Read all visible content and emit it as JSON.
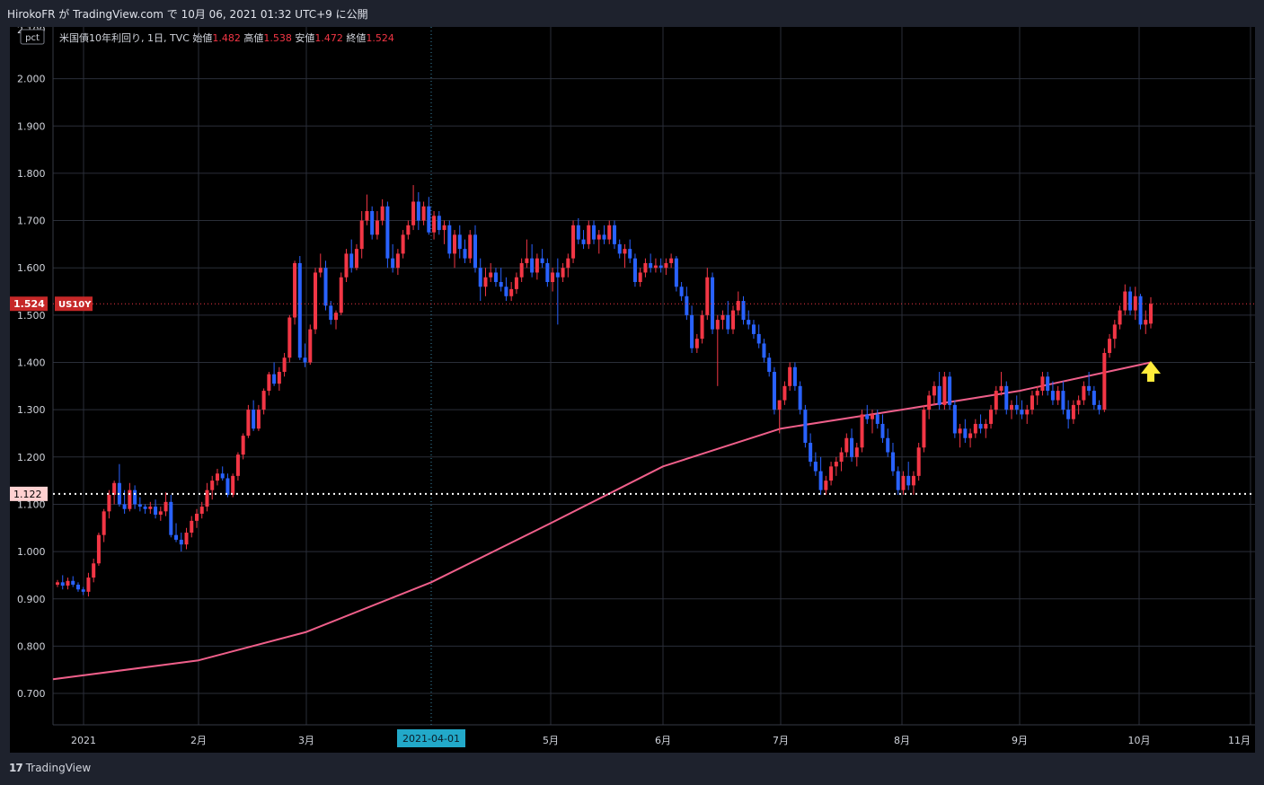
{
  "header": {
    "caption": "HirokoFR が TradingView.com で 10月 06, 2021 01:32 UTC+9 に公開"
  },
  "legend": {
    "unit_badge": "pct",
    "symbol": "米国債10年利回り, 1日, TVC",
    "open_label": "始値",
    "open_value": "1.482",
    "high_label": "高値",
    "high_value": "1.538",
    "low_label": "安値",
    "low_value": "1.472",
    "close_label": "終値",
    "close_value": "1.524"
  },
  "footer": {
    "brand": "TradingView",
    "brand_icon": "tradingview-logo-icon"
  },
  "colors": {
    "background": "#000000",
    "up": "#f23645",
    "down": "#2962ff",
    "ma_line": "#ef5f8a",
    "grid": "#2a2e39",
    "axis_text": "#d1d4dc",
    "arrow": "#ffeb3b",
    "crosshair_label_bg": "#22a9c9"
  },
  "chart_data": {
    "type": "candlestick",
    "ylim": [
      0.65,
      2.1
    ],
    "y_ticks": [
      "0.700",
      "0.800",
      "0.900",
      "1.000",
      "1.100",
      "1.200",
      "1.300",
      "1.400",
      "1.500",
      "1.600",
      "1.700",
      "1.800",
      "1.900",
      "2.000"
    ],
    "top_tick_partial": "2.100",
    "x_ticks": [
      "2021",
      "2月",
      "3月",
      "5月",
      "6月",
      "7月",
      "8月",
      "9月",
      "10月",
      "11月"
    ],
    "crosshair_x_label": "2021-04-01",
    "price_label": {
      "value": "1.524",
      "symbol": "US10Y"
    },
    "horizontal_line": {
      "value": "1.122"
    },
    "ohlc": [
      [
        0.93,
        0.94,
        0.925,
        0.935
      ],
      [
        0.935,
        0.95,
        0.92,
        0.928
      ],
      [
        0.928,
        0.945,
        0.92,
        0.938
      ],
      [
        0.938,
        0.948,
        0.925,
        0.93
      ],
      [
        0.93,
        0.935,
        0.915,
        0.92
      ],
      [
        0.92,
        0.925,
        0.908,
        0.915
      ],
      [
        0.915,
        0.955,
        0.905,
        0.945
      ],
      [
        0.945,
        0.985,
        0.935,
        0.975
      ],
      [
        0.975,
        1.04,
        0.97,
        1.035
      ],
      [
        1.035,
        1.09,
        1.02,
        1.085
      ],
      [
        1.085,
        1.13,
        1.07,
        1.12
      ],
      [
        1.12,
        1.15,
        1.1,
        1.145
      ],
      [
        1.145,
        1.185,
        1.095,
        1.1
      ],
      [
        1.1,
        1.13,
        1.08,
        1.09
      ],
      [
        1.09,
        1.145,
        1.085,
        1.13
      ],
      [
        1.13,
        1.14,
        1.09,
        1.1
      ],
      [
        1.1,
        1.115,
        1.085,
        1.095
      ],
      [
        1.095,
        1.1,
        1.08,
        1.09
      ],
      [
        1.09,
        1.105,
        1.08,
        1.095
      ],
      [
        1.095,
        1.11,
        1.07,
        1.078
      ],
      [
        1.078,
        1.095,
        1.065,
        1.085
      ],
      [
        1.085,
        1.125,
        1.075,
        1.105
      ],
      [
        1.105,
        1.12,
        1.03,
        1.035
      ],
      [
        1.035,
        1.06,
        1.02,
        1.025
      ],
      [
        1.025,
        1.04,
        1.0,
        1.015
      ],
      [
        1.015,
        1.05,
        1.005,
        1.04
      ],
      [
        1.04,
        1.075,
        1.03,
        1.065
      ],
      [
        1.065,
        1.09,
        1.05,
        1.08
      ],
      [
        1.08,
        1.105,
        1.07,
        1.095
      ],
      [
        1.095,
        1.145,
        1.085,
        1.13
      ],
      [
        1.13,
        1.16,
        1.11,
        1.15
      ],
      [
        1.15,
        1.175,
        1.14,
        1.165
      ],
      [
        1.165,
        1.18,
        1.15,
        1.155
      ],
      [
        1.155,
        1.165,
        1.115,
        1.12
      ],
      [
        1.12,
        1.165,
        1.115,
        1.16
      ],
      [
        1.16,
        1.21,
        1.15,
        1.205
      ],
      [
        1.205,
        1.25,
        1.195,
        1.245
      ],
      [
        1.245,
        1.31,
        1.24,
        1.3
      ],
      [
        1.3,
        1.32,
        1.255,
        1.26
      ],
      [
        1.26,
        1.31,
        1.255,
        1.3
      ],
      [
        1.3,
        1.345,
        1.29,
        1.34
      ],
      [
        1.34,
        1.38,
        1.33,
        1.375
      ],
      [
        1.375,
        1.4,
        1.35,
        1.355
      ],
      [
        1.355,
        1.39,
        1.34,
        1.38
      ],
      [
        1.38,
        1.42,
        1.37,
        1.41
      ],
      [
        1.41,
        1.5,
        1.4,
        1.495
      ],
      [
        1.495,
        1.615,
        1.48,
        1.61
      ],
      [
        1.61,
        1.625,
        1.405,
        1.41
      ],
      [
        1.41,
        1.44,
        1.39,
        1.4
      ],
      [
        1.4,
        1.48,
        1.395,
        1.47
      ],
      [
        1.47,
        1.6,
        1.46,
        1.59
      ],
      [
        1.59,
        1.63,
        1.58,
        1.6
      ],
      [
        1.6,
        1.615,
        1.51,
        1.52
      ],
      [
        1.52,
        1.53,
        1.48,
        1.49
      ],
      [
        1.49,
        1.51,
        1.47,
        1.505
      ],
      [
        1.505,
        1.59,
        1.5,
        1.58
      ],
      [
        1.58,
        1.64,
        1.57,
        1.63
      ],
      [
        1.63,
        1.66,
        1.59,
        1.6
      ],
      [
        1.6,
        1.65,
        1.595,
        1.64
      ],
      [
        1.64,
        1.72,
        1.62,
        1.7
      ],
      [
        1.7,
        1.755,
        1.69,
        1.72
      ],
      [
        1.72,
        1.73,
        1.66,
        1.67
      ],
      [
        1.67,
        1.72,
        1.66,
        1.7
      ],
      [
        1.7,
        1.745,
        1.69,
        1.73
      ],
      [
        1.73,
        1.74,
        1.6,
        1.62
      ],
      [
        1.62,
        1.65,
        1.59,
        1.6
      ],
      [
        1.6,
        1.64,
        1.585,
        1.63
      ],
      [
        1.63,
        1.68,
        1.62,
        1.67
      ],
      [
        1.67,
        1.7,
        1.66,
        1.69
      ],
      [
        1.69,
        1.775,
        1.68,
        1.74
      ],
      [
        1.74,
        1.76,
        1.68,
        1.7
      ],
      [
        1.7,
        1.74,
        1.69,
        1.73
      ],
      [
        1.73,
        1.75,
        1.67,
        1.675
      ],
      [
        1.675,
        1.72,
        1.66,
        1.71
      ],
      [
        1.71,
        1.72,
        1.67,
        1.68
      ],
      [
        1.68,
        1.7,
        1.65,
        1.69
      ],
      [
        1.69,
        1.7,
        1.62,
        1.63
      ],
      [
        1.63,
        1.68,
        1.6,
        1.67
      ],
      [
        1.67,
        1.69,
        1.62,
        1.64
      ],
      [
        1.64,
        1.66,
        1.61,
        1.62
      ],
      [
        1.62,
        1.68,
        1.61,
        1.67
      ],
      [
        1.67,
        1.69,
        1.59,
        1.6
      ],
      [
        1.6,
        1.62,
        1.53,
        1.56
      ],
      [
        1.56,
        1.6,
        1.54,
        1.58
      ],
      [
        1.58,
        1.61,
        1.57,
        1.59
      ],
      [
        1.59,
        1.6,
        1.56,
        1.57
      ],
      [
        1.57,
        1.6,
        1.55,
        1.56
      ],
      [
        1.56,
        1.58,
        1.53,
        1.54
      ],
      [
        1.54,
        1.57,
        1.53,
        1.555
      ],
      [
        1.555,
        1.59,
        1.545,
        1.58
      ],
      [
        1.58,
        1.62,
        1.57,
        1.61
      ],
      [
        1.61,
        1.66,
        1.6,
        1.62
      ],
      [
        1.62,
        1.65,
        1.58,
        1.59
      ],
      [
        1.59,
        1.63,
        1.575,
        1.62
      ],
      [
        1.62,
        1.64,
        1.6,
        1.61
      ],
      [
        1.61,
        1.62,
        1.56,
        1.57
      ],
      [
        1.57,
        1.6,
        1.55,
        1.59
      ],
      [
        1.59,
        1.62,
        1.48,
        1.58
      ],
      [
        1.58,
        1.61,
        1.57,
        1.6
      ],
      [
        1.6,
        1.63,
        1.58,
        1.62
      ],
      [
        1.62,
        1.7,
        1.61,
        1.69
      ],
      [
        1.69,
        1.705,
        1.65,
        1.66
      ],
      [
        1.66,
        1.68,
        1.64,
        1.65
      ],
      [
        1.65,
        1.7,
        1.64,
        1.69
      ],
      [
        1.69,
        1.7,
        1.65,
        1.66
      ],
      [
        1.66,
        1.68,
        1.63,
        1.67
      ],
      [
        1.67,
        1.69,
        1.65,
        1.66
      ],
      [
        1.66,
        1.7,
        1.65,
        1.69
      ],
      [
        1.69,
        1.7,
        1.64,
        1.65
      ],
      [
        1.65,
        1.66,
        1.62,
        1.63
      ],
      [
        1.63,
        1.65,
        1.6,
        1.64
      ],
      [
        1.64,
        1.66,
        1.61,
        1.62
      ],
      [
        1.62,
        1.63,
        1.56,
        1.57
      ],
      [
        1.57,
        1.6,
        1.56,
        1.59
      ],
      [
        1.59,
        1.62,
        1.58,
        1.61
      ],
      [
        1.61,
        1.63,
        1.59,
        1.6
      ],
      [
        1.6,
        1.62,
        1.59,
        1.605
      ],
      [
        1.605,
        1.62,
        1.59,
        1.6
      ],
      [
        1.6,
        1.62,
        1.585,
        1.61
      ],
      [
        1.61,
        1.63,
        1.6,
        1.62
      ],
      [
        1.62,
        1.625,
        1.55,
        1.56
      ],
      [
        1.56,
        1.57,
        1.53,
        1.54
      ],
      [
        1.54,
        1.56,
        1.49,
        1.5
      ],
      [
        1.5,
        1.52,
        1.42,
        1.43
      ],
      [
        1.43,
        1.46,
        1.42,
        1.45
      ],
      [
        1.45,
        1.51,
        1.44,
        1.5
      ],
      [
        1.5,
        1.6,
        1.49,
        1.58
      ],
      [
        1.58,
        1.59,
        1.46,
        1.47
      ],
      [
        1.47,
        1.5,
        1.35,
        1.49
      ],
      [
        1.49,
        1.51,
        1.47,
        1.5
      ],
      [
        1.5,
        1.53,
        1.46,
        1.47
      ],
      [
        1.47,
        1.52,
        1.46,
        1.51
      ],
      [
        1.51,
        1.55,
        1.5,
        1.53
      ],
      [
        1.53,
        1.54,
        1.48,
        1.49
      ],
      [
        1.49,
        1.51,
        1.47,
        1.48
      ],
      [
        1.48,
        1.49,
        1.45,
        1.46
      ],
      [
        1.46,
        1.48,
        1.43,
        1.44
      ],
      [
        1.44,
        1.45,
        1.4,
        1.41
      ],
      [
        1.41,
        1.42,
        1.37,
        1.38
      ],
      [
        1.38,
        1.39,
        1.29,
        1.3
      ],
      [
        1.3,
        1.32,
        1.25,
        1.32
      ],
      [
        1.32,
        1.36,
        1.31,
        1.35
      ],
      [
        1.35,
        1.4,
        1.34,
        1.39
      ],
      [
        1.39,
        1.4,
        1.34,
        1.35
      ],
      [
        1.35,
        1.36,
        1.29,
        1.3
      ],
      [
        1.3,
        1.31,
        1.22,
        1.23
      ],
      [
        1.23,
        1.25,
        1.18,
        1.19
      ],
      [
        1.19,
        1.21,
        1.16,
        1.17
      ],
      [
        1.17,
        1.2,
        1.12,
        1.13
      ],
      [
        1.13,
        1.16,
        1.12,
        1.15
      ],
      [
        1.15,
        1.19,
        1.14,
        1.18
      ],
      [
        1.18,
        1.2,
        1.16,
        1.19
      ],
      [
        1.19,
        1.22,
        1.17,
        1.21
      ],
      [
        1.21,
        1.25,
        1.2,
        1.24
      ],
      [
        1.24,
        1.26,
        1.19,
        1.2
      ],
      [
        1.2,
        1.23,
        1.18,
        1.22
      ],
      [
        1.22,
        1.3,
        1.21,
        1.29
      ],
      [
        1.29,
        1.31,
        1.27,
        1.28
      ],
      [
        1.28,
        1.3,
        1.25,
        1.29
      ],
      [
        1.29,
        1.3,
        1.26,
        1.27
      ],
      [
        1.27,
        1.29,
        1.23,
        1.24
      ],
      [
        1.24,
        1.26,
        1.2,
        1.21
      ],
      [
        1.21,
        1.23,
        1.16,
        1.17
      ],
      [
        1.17,
        1.18,
        1.12,
        1.13
      ],
      [
        1.13,
        1.17,
        1.12,
        1.16
      ],
      [
        1.16,
        1.19,
        1.13,
        1.14
      ],
      [
        1.14,
        1.17,
        1.12,
        1.16
      ],
      [
        1.16,
        1.23,
        1.15,
        1.22
      ],
      [
        1.22,
        1.31,
        1.21,
        1.3
      ],
      [
        1.3,
        1.34,
        1.28,
        1.33
      ],
      [
        1.33,
        1.36,
        1.31,
        1.35
      ],
      [
        1.35,
        1.38,
        1.3,
        1.31
      ],
      [
        1.31,
        1.38,
        1.3,
        1.37
      ],
      [
        1.37,
        1.38,
        1.3,
        1.31
      ],
      [
        1.31,
        1.32,
        1.24,
        1.25
      ],
      [
        1.25,
        1.27,
        1.22,
        1.26
      ],
      [
        1.26,
        1.28,
        1.23,
        1.24
      ],
      [
        1.24,
        1.26,
        1.22,
        1.25
      ],
      [
        1.25,
        1.28,
        1.24,
        1.27
      ],
      [
        1.27,
        1.29,
        1.25,
        1.26
      ],
      [
        1.26,
        1.28,
        1.24,
        1.27
      ],
      [
        1.27,
        1.31,
        1.26,
        1.3
      ],
      [
        1.3,
        1.35,
        1.29,
        1.34
      ],
      [
        1.34,
        1.38,
        1.33,
        1.35
      ],
      [
        1.35,
        1.36,
        1.29,
        1.3
      ],
      [
        1.3,
        1.32,
        1.28,
        1.31
      ],
      [
        1.31,
        1.33,
        1.29,
        1.3
      ],
      [
        1.3,
        1.32,
        1.28,
        1.29
      ],
      [
        1.29,
        1.31,
        1.27,
        1.3
      ],
      [
        1.3,
        1.34,
        1.29,
        1.33
      ],
      [
        1.33,
        1.35,
        1.31,
        1.34
      ],
      [
        1.34,
        1.38,
        1.33,
        1.37
      ],
      [
        1.37,
        1.38,
        1.33,
        1.34
      ],
      [
        1.34,
        1.36,
        1.31,
        1.32
      ],
      [
        1.32,
        1.35,
        1.31,
        1.34
      ],
      [
        1.34,
        1.36,
        1.29,
        1.3
      ],
      [
        1.3,
        1.32,
        1.26,
        1.28
      ],
      [
        1.28,
        1.32,
        1.27,
        1.31
      ],
      [
        1.31,
        1.33,
        1.29,
        1.32
      ],
      [
        1.32,
        1.36,
        1.31,
        1.35
      ],
      [
        1.35,
        1.38,
        1.33,
        1.34
      ],
      [
        1.34,
        1.35,
        1.3,
        1.31
      ],
      [
        1.31,
        1.32,
        1.29,
        1.3
      ],
      [
        1.3,
        1.43,
        1.295,
        1.42
      ],
      [
        1.42,
        1.46,
        1.41,
        1.45
      ],
      [
        1.45,
        1.49,
        1.43,
        1.48
      ],
      [
        1.48,
        1.52,
        1.47,
        1.51
      ],
      [
        1.51,
        1.565,
        1.5,
        1.55
      ],
      [
        1.55,
        1.56,
        1.5,
        1.51
      ],
      [
        1.51,
        1.56,
        1.49,
        1.54
      ],
      [
        1.54,
        1.545,
        1.47,
        1.48
      ],
      [
        1.48,
        1.51,
        1.46,
        1.49
      ],
      [
        1.482,
        1.538,
        1.472,
        1.524
      ]
    ],
    "ma_series": {
      "x": [
        "2021-01",
        "2021-02",
        "2021-03",
        "2021-04",
        "2021-05",
        "2021-06",
        "2021-07",
        "2021-08",
        "2021-09",
        "2021-10"
      ],
      "values": [
        0.73,
        0.77,
        0.83,
        0.935,
        1.06,
        1.18,
        1.26,
        1.3,
        1.34,
        1.4
      ]
    }
  }
}
